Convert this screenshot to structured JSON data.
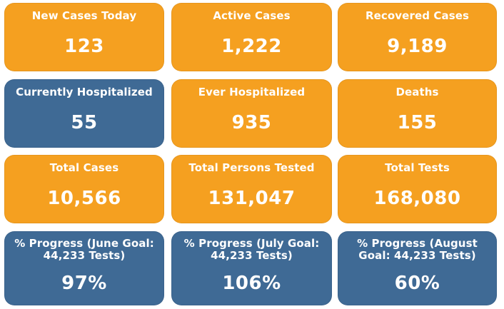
{
  "tiles": [
    {
      "label": "New Cases Today",
      "value": "123"
    },
    {
      "label": "Active Cases",
      "value": "1,222"
    },
    {
      "label": "Recovered Cases",
      "value": "9,189"
    },
    {
      "label": "Currently Hospitalized",
      "value": "55"
    },
    {
      "label": "Ever Hospitalized",
      "value": "935"
    },
    {
      "label": "Deaths",
      "value": "155"
    },
    {
      "label": "Total Cases",
      "value": "10,566"
    },
    {
      "label": "Total Persons Tested",
      "value": "131,047"
    },
    {
      "label": "Total Tests",
      "value": "168,080"
    },
    {
      "label": "% Progress (June Goal: 44,233 Tests)",
      "value": "97%"
    },
    {
      "label": "% Progress (July Goal: 44,233 Tests)",
      "value": "106%"
    },
    {
      "label": "% Progress (August Goal: 44,233 Tests)",
      "value": "60%"
    }
  ],
  "colors": {
    "orange_tile": "#f5a020",
    "blue_tile": "#3f6a95",
    "text": "#ffffff"
  }
}
